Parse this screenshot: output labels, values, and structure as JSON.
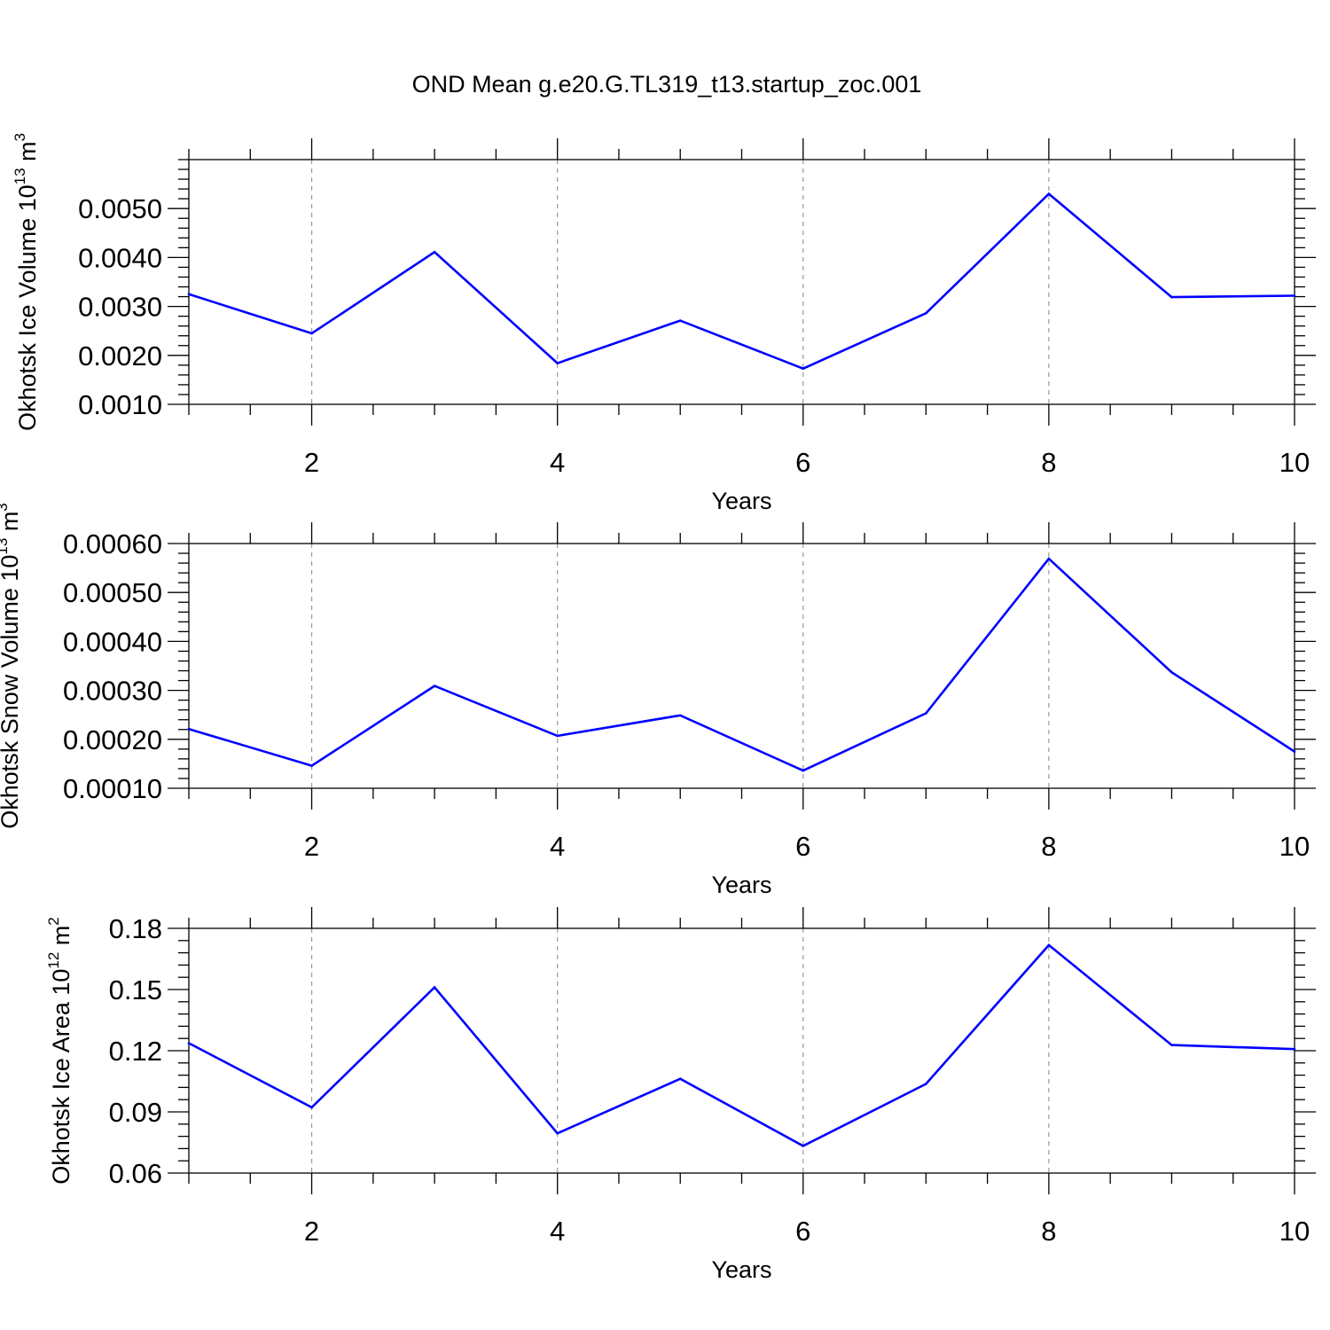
{
  "title": "OND Mean g.e20.G.TL319_t13.startup_zoc.001",
  "colors": {
    "line": "#0000ff",
    "grid": "#999999",
    "axis": "#000000"
  },
  "chart_data": [
    {
      "type": "line",
      "title": "OND Mean g.e20.G.TL319_t13.startup_zoc.001",
      "xlabel": "Years",
      "ylabel_main": "Okhotsk Ice Volume 10",
      "ylabel_exp": "13",
      "ylabel_unit": " m",
      "ylabel_unit_exp": "3",
      "xlim": [
        1,
        10
      ],
      "ylim": [
        0.001,
        0.006
      ],
      "xticks": [
        2,
        4,
        6,
        8,
        10
      ],
      "xtick_labels": [
        "2",
        "4",
        "6",
        "8",
        "10"
      ],
      "yticks": [
        0.001,
        0.002,
        0.003,
        0.004,
        0.005
      ],
      "ytick_labels": [
        "0.0010",
        "0.0020",
        "0.0030",
        "0.0040",
        "0.0050"
      ],
      "grid": "vertical dashed at major x ticks",
      "series": [
        {
          "name": "Ice Volume",
          "x": [
            1,
            2,
            3,
            4,
            5,
            6,
            7,
            8,
            9,
            10
          ],
          "values": [
            0.00325,
            0.00245,
            0.00411,
            0.00184,
            0.00271,
            0.00173,
            0.00286,
            0.0053,
            0.00319,
            0.00322
          ]
        }
      ]
    },
    {
      "type": "line",
      "xlabel": "Years",
      "ylabel_main": "Okhotsk Snow Volume 10",
      "ylabel_exp": "13",
      "ylabel_unit": " m",
      "ylabel_unit_exp": "3",
      "xlim": [
        1,
        10
      ],
      "ylim": [
        0.0001,
        0.0006
      ],
      "xticks": [
        2,
        4,
        6,
        8,
        10
      ],
      "xtick_labels": [
        "2",
        "4",
        "6",
        "8",
        "10"
      ],
      "yticks": [
        0.0001,
        0.0002,
        0.0003,
        0.0004,
        0.0005,
        0.0006
      ],
      "ytick_labels": [
        "0.00010",
        "0.00020",
        "0.00030",
        "0.00040",
        "0.00050",
        "0.00060"
      ],
      "grid": "vertical dashed at major x ticks",
      "series": [
        {
          "name": "Snow Volume",
          "x": [
            1,
            2,
            3,
            4,
            5,
            6,
            7,
            8,
            9,
            10
          ],
          "values": [
            0.000221,
            0.000146,
            0.000309,
            0.000207,
            0.000249,
            0.000136,
            0.000253,
            0.000569,
            0.000337,
            0.000175
          ]
        }
      ]
    },
    {
      "type": "line",
      "xlabel": "Years",
      "ylabel_main": "Okhotsk Ice Area 10",
      "ylabel_exp": "12",
      "ylabel_unit": " m",
      "ylabel_unit_exp": "2",
      "xlim": [
        1,
        10
      ],
      "ylim": [
        0.06,
        0.18
      ],
      "xticks": [
        2,
        4,
        6,
        8,
        10
      ],
      "xtick_labels": [
        "2",
        "4",
        "6",
        "8",
        "10"
      ],
      "yticks": [
        0.06,
        0.09,
        0.12,
        0.15,
        0.18
      ],
      "ytick_labels": [
        "0.06",
        "0.09",
        "0.12",
        "0.15",
        "0.18"
      ],
      "grid": "vertical dashed at major x ticks",
      "series": [
        {
          "name": "Ice Area",
          "x": [
            1,
            2,
            3,
            4,
            5,
            6,
            7,
            8,
            9,
            10
          ],
          "values": [
            0.1237,
            0.0922,
            0.1511,
            0.0795,
            0.1062,
            0.0733,
            0.1037,
            0.1718,
            0.1228,
            0.1208
          ]
        }
      ]
    }
  ]
}
